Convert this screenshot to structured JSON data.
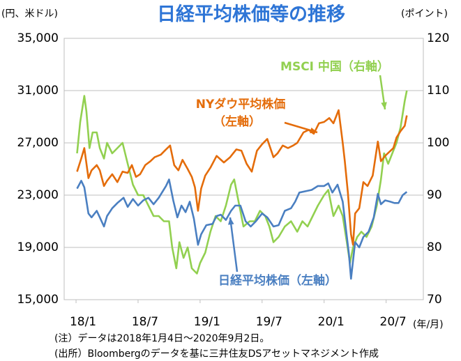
{
  "chart_data": {
    "type": "line",
    "title": "日経平均株価等の推移",
    "y_unit": "(円、米ドル)",
    "y2_unit": "(ポイント)",
    "x_unit": "(年/月)",
    "notes": [
      "(注）データは2018年1月4日～2020年9月2日。",
      "(出所）Bloombergのデータを基に三井住友DSアセットマネジメント作成"
    ],
    "annotations": [
      "（左軸）"
    ],
    "xlim": [
      -1.15,
      33.6
    ],
    "xticks": [
      {
        "value": 0,
        "label": "18/1"
      },
      {
        "value": 6,
        "label": "18/7"
      },
      {
        "value": 12,
        "label": "19/1"
      },
      {
        "value": 18,
        "label": "19/7"
      },
      {
        "value": 24,
        "label": "20/1"
      },
      {
        "value": 30,
        "label": "20/7"
      }
    ],
    "ylim": [
      15000,
      35000
    ],
    "yticks": [
      {
        "value": 15000,
        "label": "15,000"
      },
      {
        "value": 19000,
        "label": "19,000"
      },
      {
        "value": 23000,
        "label": "23,000"
      },
      {
        "value": 27000,
        "label": "27,000"
      },
      {
        "value": 31000,
        "label": "31,000"
      },
      {
        "value": 35000,
        "label": "35,000"
      }
    ],
    "y2lim": [
      70,
      120
    ],
    "y2ticks": [
      70,
      80,
      90,
      100,
      110,
      120
    ],
    "grid": true,
    "series": [
      {
        "name": "MSCI 中国（右軸）",
        "color": "#92d050",
        "axis": "y2",
        "x": [
          0.1,
          0.4,
          0.8,
          1.0,
          1.3,
          1.6,
          2.0,
          2.3,
          2.7,
          3.0,
          3.5,
          4.0,
          4.5,
          5.0,
          5.5,
          6.0,
          6.5,
          7.0,
          7.5,
          8.0,
          8.5,
          9.0,
          9.3,
          9.7,
          10.0,
          10.4,
          10.8,
          11.2,
          11.7,
          12.0,
          12.5,
          13.0,
          13.5,
          14.0,
          14.5,
          15.0,
          15.3,
          15.7,
          16.2,
          16.8,
          17.3,
          17.8,
          18.3,
          18.7,
          19.1,
          19.6,
          20.2,
          20.8,
          21.4,
          21.9,
          22.4,
          22.9,
          23.4,
          24.0,
          24.4,
          24.9,
          25.4,
          25.8,
          26.2,
          26.5,
          26.8,
          27.2,
          27.6,
          28.1,
          28.6,
          29.1,
          29.5,
          29.8,
          30.2,
          30.6,
          31.0,
          31.4,
          31.8,
          32.0
        ],
        "values": [
          98,
          104,
          109,
          106,
          99,
          102,
          102,
          99,
          97,
          100,
          98,
          99,
          100,
          96,
          92,
          90,
          90,
          88,
          86,
          86,
          85,
          85,
          80,
          76,
          81,
          78,
          80,
          76,
          75,
          77,
          79,
          83,
          86,
          85,
          88,
          92,
          93,
          89,
          84,
          85,
          85,
          87,
          86,
          84,
          81,
          82,
          84,
          85,
          83,
          85,
          84,
          86,
          88,
          90,
          91,
          86,
          88,
          86,
          81,
          77,
          80,
          82,
          83,
          82,
          84,
          88,
          93,
          98,
          96,
          98,
          100,
          103,
          108,
          110
        ]
      },
      {
        "name": "NYダウ平均株価",
        "color": "#e46c0a",
        "axis": "y",
        "x": [
          0.1,
          0.5,
          0.8,
          1.2,
          1.5,
          2.0,
          2.3,
          2.7,
          3.0,
          3.5,
          4.0,
          4.5,
          5.0,
          5.4,
          5.8,
          6.2,
          6.7,
          7.2,
          7.6,
          8.2,
          8.7,
          9.1,
          9.5,
          9.9,
          10.3,
          10.8,
          11.2,
          11.5,
          11.8,
          12.1,
          12.5,
          13.0,
          13.6,
          14.3,
          14.9,
          15.5,
          16.0,
          16.5,
          17.0,
          17.5,
          18.0,
          18.5,
          19.1,
          19.5,
          20.0,
          20.5,
          21.0,
          21.4,
          22.0,
          22.5,
          23.0,
          23.5,
          24.0,
          24.5,
          24.9,
          25.4,
          25.8,
          26.0,
          26.3,
          26.6,
          26.8,
          27.0,
          27.4,
          27.8,
          28.2,
          28.7,
          29.2,
          29.5,
          29.9,
          30.3,
          30.7,
          31.0,
          31.4,
          31.8,
          32.0
        ],
        "values": [
          24800,
          25800,
          26600,
          24300,
          24900,
          25300,
          24900,
          23700,
          24100,
          24600,
          24000,
          24800,
          24700,
          25300,
          24400,
          24600,
          25300,
          25600,
          25900,
          26100,
          26500,
          26800,
          25300,
          24900,
          25700,
          25000,
          24400,
          23600,
          21800,
          23500,
          24500,
          25100,
          26000,
          25500,
          25900,
          26500,
          26400,
          25400,
          24800,
          26400,
          26900,
          27300,
          25900,
          26200,
          26800,
          26600,
          26800,
          27000,
          27800,
          28000,
          27700,
          28500,
          28600,
          28900,
          28500,
          29500,
          27000,
          25600,
          23200,
          20000,
          19200,
          21600,
          22000,
          24000,
          23700,
          24500,
          27100,
          25600,
          26000,
          26300,
          26600,
          27400,
          27900,
          28300,
          29100
        ]
      },
      {
        "name": "日経平均株価（左軸）",
        "color": "#4a7fc1",
        "axis": "y",
        "x": [
          0.1,
          0.5,
          0.8,
          1.2,
          1.5,
          2.0,
          2.3,
          2.7,
          3.0,
          3.5,
          4.0,
          4.6,
          5.0,
          5.5,
          6.0,
          6.5,
          7.0,
          7.5,
          8.0,
          8.7,
          9.0,
          9.4,
          9.8,
          10.2,
          10.6,
          11.0,
          11.4,
          11.8,
          12.1,
          12.6,
          13.2,
          13.6,
          14.0,
          14.5,
          15.0,
          15.4,
          15.9,
          16.4,
          16.9,
          17.4,
          18.0,
          18.5,
          19.1,
          19.6,
          20.2,
          20.8,
          21.2,
          21.6,
          22.2,
          22.8,
          23.4,
          24.0,
          24.4,
          24.8,
          25.3,
          25.8,
          26.1,
          26.4,
          26.6,
          27.0,
          27.4,
          27.8,
          28.3,
          28.8,
          29.2,
          29.5,
          29.9,
          30.4,
          30.8,
          31.2,
          31.6,
          32.0
        ],
        "values": [
          23500,
          24100,
          23600,
          21600,
          21300,
          21800,
          21300,
          20600,
          21400,
          22000,
          22400,
          22800,
          22100,
          22700,
          22200,
          22600,
          22800,
          22300,
          22800,
          23700,
          24200,
          22600,
          21300,
          22200,
          21700,
          22500,
          21200,
          19200,
          20000,
          20700,
          20800,
          21400,
          21500,
          21100,
          21800,
          22200,
          22200,
          21000,
          20600,
          21000,
          21600,
          21300,
          20600,
          20700,
          21800,
          22000,
          22500,
          23200,
          23300,
          23400,
          23700,
          23700,
          23900,
          23200,
          23800,
          22500,
          20500,
          18500,
          16600,
          19400,
          19000,
          19800,
          20200,
          21300,
          23100,
          22300,
          22600,
          22500,
          22400,
          22400,
          23000,
          23250
        ]
      }
    ]
  }
}
